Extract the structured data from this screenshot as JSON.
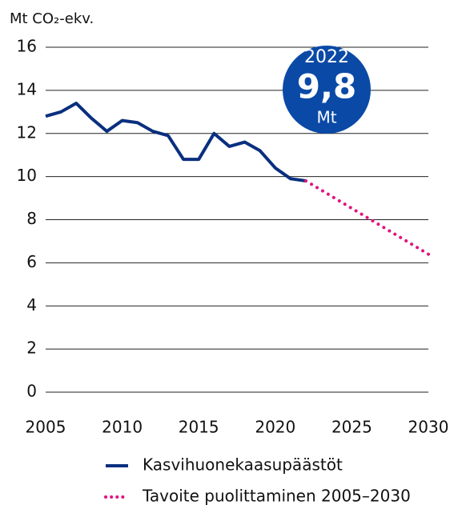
{
  "chart_data": {
    "type": "line",
    "y_axis_label": "Mt CO₂-ekv.",
    "xlim": [
      2005,
      2030
    ],
    "xticks": [
      2005,
      2010,
      2015,
      2020,
      2025,
      2030
    ],
    "ylim": [
      0,
      16
    ],
    "yticks": [
      0,
      2,
      4,
      6,
      8,
      10,
      12,
      14,
      16
    ],
    "grid": true,
    "series": [
      {
        "name": "Kasvihuonekaasupäästöt",
        "color": "#0a2f7f",
        "style": "solid",
        "x": [
          2005,
          2006,
          2007,
          2008,
          2009,
          2010,
          2011,
          2012,
          2013,
          2014,
          2015,
          2016,
          2017,
          2018,
          2019,
          2020,
          2021,
          2022
        ],
        "values": [
          12.8,
          13.0,
          13.4,
          12.7,
          12.1,
          12.6,
          12.5,
          12.1,
          11.9,
          10.8,
          10.8,
          12.0,
          11.4,
          11.6,
          11.2,
          10.4,
          9.9,
          9.8
        ]
      },
      {
        "name": "Tavoite puolittaminen 2005–2030",
        "color": "#e0157f",
        "style": "dotted",
        "x": [
          2022,
          2030
        ],
        "values": [
          9.8,
          6.4
        ]
      }
    ],
    "annotation": {
      "year": "2022",
      "value": "9,8",
      "unit": "Mt",
      "color": "#0a4aa6"
    }
  }
}
